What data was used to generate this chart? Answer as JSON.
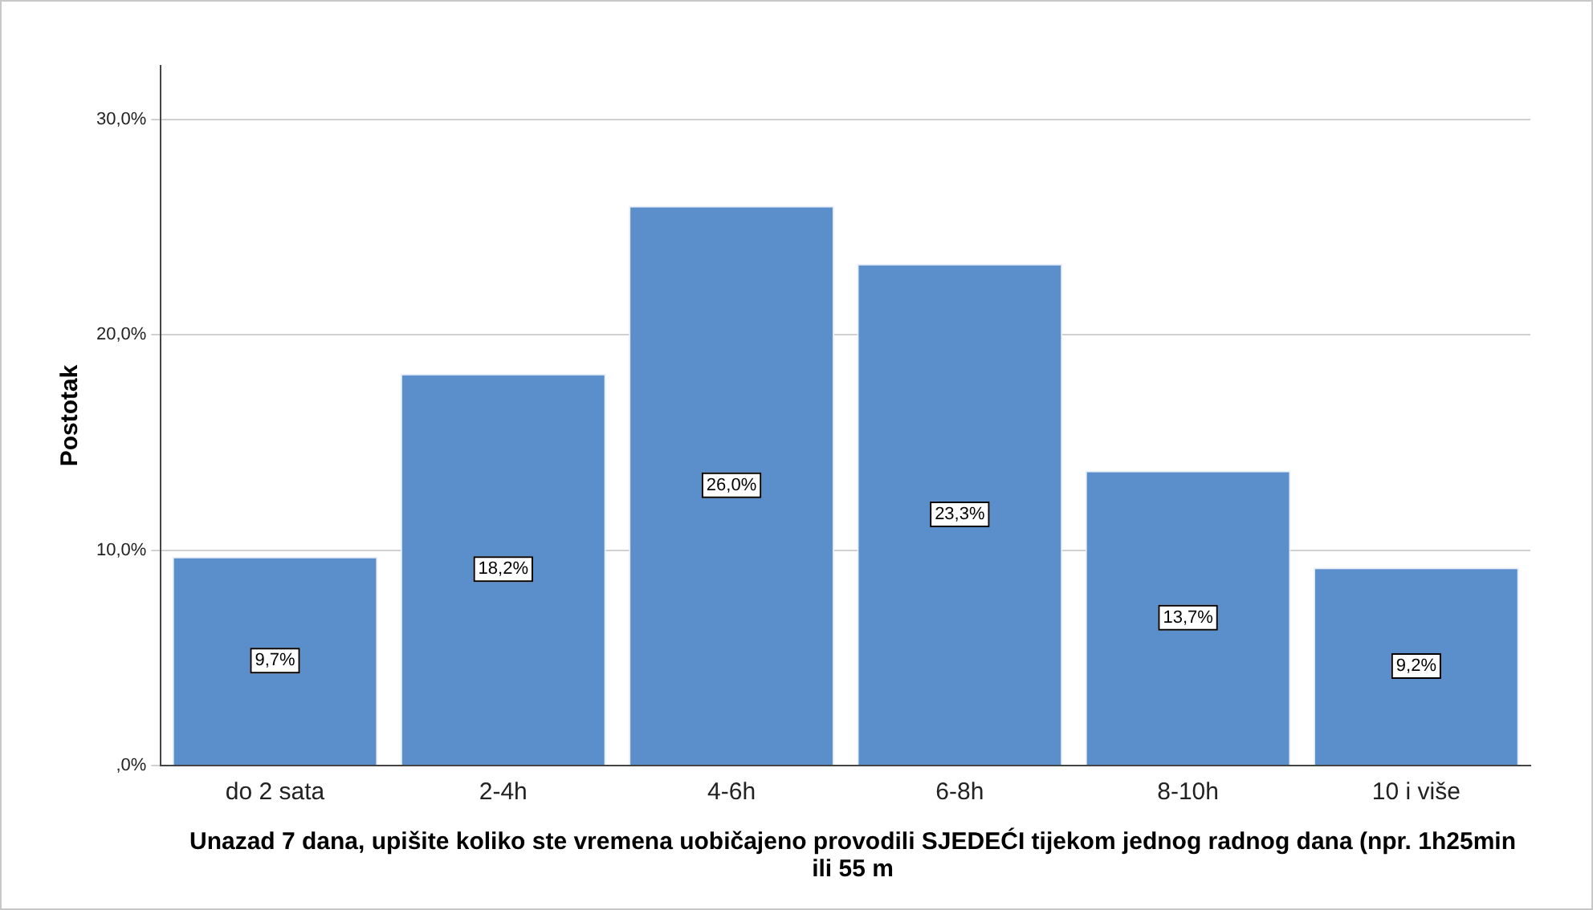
{
  "chart_data": {
    "type": "bar",
    "xlabel": "Unazad 7 dana, upišite koliko ste vremena uobičajeno provodili SJEDEĆI tijekom jednog radnog dana (npr. 1h25min ili 55 m",
    "ylabel": "Postotak",
    "categories": [
      "do 2 sata",
      "2-4h",
      "4-6h",
      "6-8h",
      "8-10h",
      "10 i više"
    ],
    "values": [
      9.7,
      18.2,
      26.0,
      23.3,
      13.7,
      9.2
    ],
    "value_labels": [
      "9,7%",
      "18,2%",
      "26,0%",
      "23,3%",
      "13,7%",
      "9,2%"
    ],
    "color": "#5b8fcb",
    "ylim": [
      0,
      32.5
    ],
    "yticks": [
      {
        "value": 0,
        "label": ",0%"
      },
      {
        "value": 10,
        "label": "10,0%"
      },
      {
        "value": 20,
        "label": "20,0%"
      },
      {
        "value": 30,
        "label": "30,0%"
      }
    ],
    "grid": "y",
    "legend": false
  }
}
